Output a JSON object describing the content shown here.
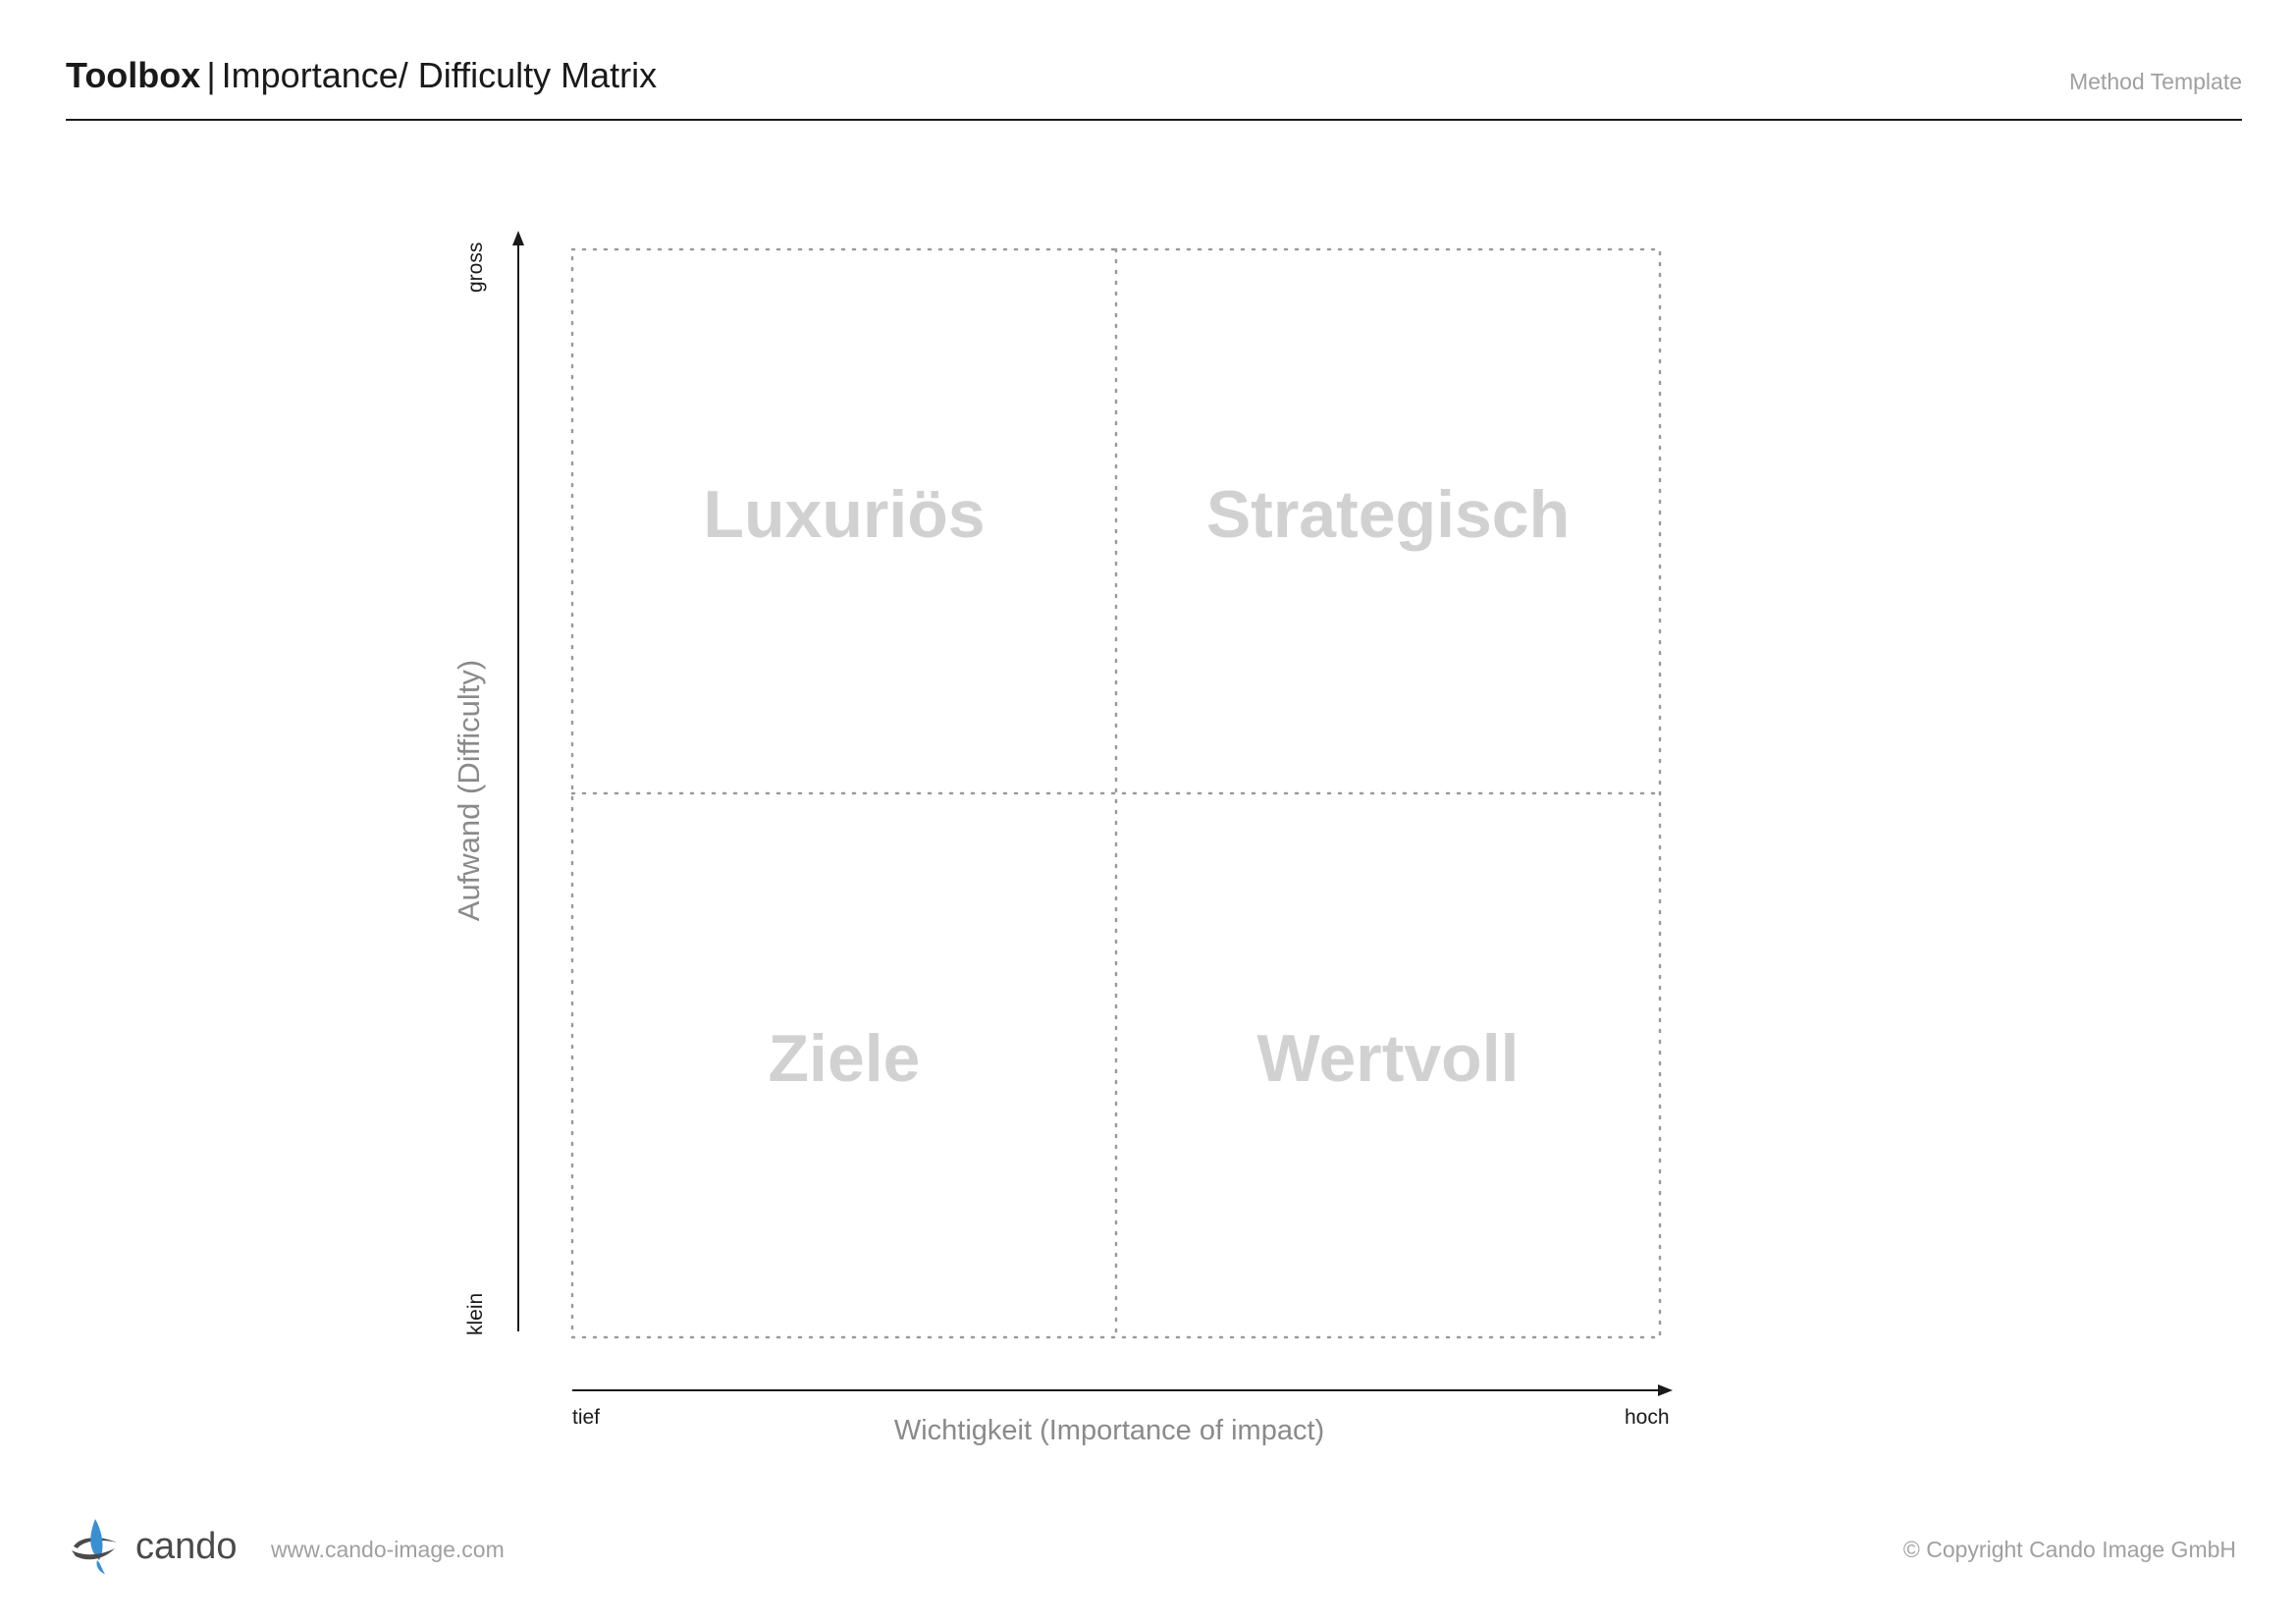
{
  "header": {
    "title_bold": "Toolbox",
    "title_separator": "|",
    "title_rest": "Importance/ Difficulty Matrix",
    "method": "Method Template"
  },
  "matrix": {
    "quadrants": {
      "top_left": "Luxuriös",
      "top_right": "Strategisch",
      "bottom_left": "Ziele",
      "bottom_right": "Wertvoll"
    },
    "y_axis": {
      "title": "Aufwand (Difficulty)",
      "high": "gross",
      "low": "klein"
    },
    "x_axis": {
      "title": "Wichtigkeit (Importance of impact)",
      "low": "tief",
      "high": "hoch"
    }
  },
  "footer": {
    "brand": "cando",
    "url": "www.cando-image.com",
    "copyright": "© Copyright Cando Image GmbH"
  },
  "colors": {
    "quadrant_text": "#d1d1d1",
    "axis_title": "#8a8a8a",
    "logo_blue": "#3a8fd0",
    "logo_dark": "#4a4a4a"
  }
}
